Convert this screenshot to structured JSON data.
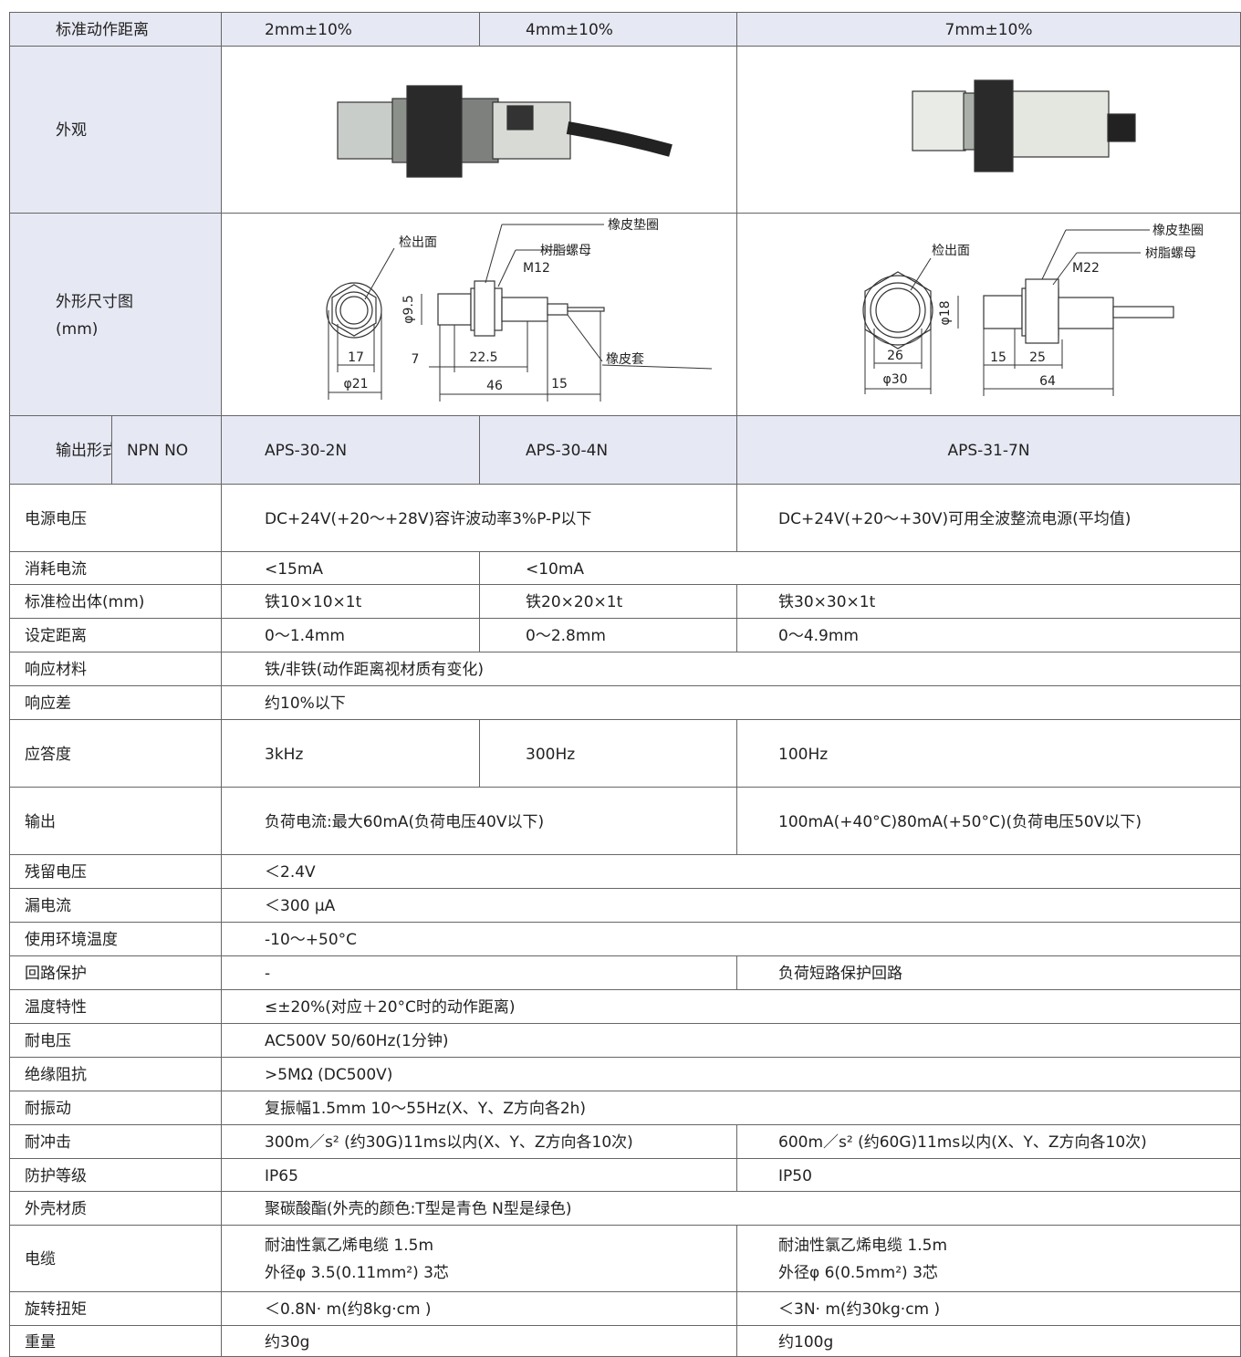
{
  "rows": [
    {
      "label": "标准动作距离",
      "cells": [
        "2mm±10%",
        "4mm±10%",
        "7mm±10%"
      ]
    },
    {
      "label": "外观",
      "cells": []
    },
    {
      "label": [
        "外形尺寸图",
        "(mm)"
      ],
      "cells": [],
      "drawings": [
        {
          "labels": [
            "检出面",
            "橡皮垫圈",
            "树脂螺母",
            "M12",
            "φ9.5",
            "17",
            "φ21",
            "7",
            "22.5",
            "46",
            "15",
            "橡皮套"
          ]
        },
        {
          "labels": [
            "检出面",
            "橡皮垫圈",
            "树脂螺母",
            "M22",
            "φ18",
            "26",
            "φ30",
            "15",
            "25",
            "64"
          ]
        }
      ]
    },
    {
      "label": "输出形式",
      "sublabel": "NPN NO",
      "cells": [
        "APS-30-2N",
        "APS-30-4N",
        "APS-31-7N"
      ]
    },
    {
      "label": "电源电压",
      "cells": [
        "DC+24V(+20～+28V)容许波动率3%P-P以下",
        "DC+24V(+20～+30V)可用全波整流电源(平均值)"
      ]
    },
    {
      "label": "消耗电流",
      "cells": [
        "<15mA",
        "<10mA"
      ]
    },
    {
      "label": "标准检出体(mm)",
      "cells": [
        "铁10×10×1t",
        "铁20×20×1t",
        "铁30×30×1t"
      ]
    },
    {
      "label": "设定距离",
      "cells": [
        "0～1.4mm",
        "0～2.8mm",
        "0～4.9mm"
      ]
    },
    {
      "label": "响应材料",
      "cells": [
        "铁/非铁(动作距离视材质有变化)"
      ]
    },
    {
      "label": "响应差",
      "cells": [
        "约10%以下"
      ]
    },
    {
      "label": "应答度",
      "cells": [
        "3kHz",
        "300Hz",
        "100Hz"
      ]
    },
    {
      "label": "输出",
      "cells": [
        "负荷电流:最大60mA(负荷电压40V以下)",
        "100mA(+40°C)80mA(+50°C)(负荷电压50V以下)"
      ]
    },
    {
      "label": "残留电压",
      "cells": [
        "＜2.4V"
      ]
    },
    {
      "label": "漏电流",
      "cells": [
        "＜300 μA"
      ]
    },
    {
      "label": "使用环境温度",
      "cells": [
        "-10～+50°C"
      ]
    },
    {
      "label": "回路保护",
      "cells": [
        "-",
        "负荷短路保护回路"
      ]
    },
    {
      "label": "温度特性",
      "cells": [
        "≤±20%(对应＋20°C时的动作距离)"
      ]
    },
    {
      "label": "耐电压",
      "cells": [
        "AC500V    50/60Hz(1分钟)"
      ]
    },
    {
      "label": "绝缘阻抗",
      "cells": [
        ">5MΩ  (DC500V)"
      ]
    },
    {
      "label": "耐振动",
      "cells": [
        "复振幅1.5mm  10～55Hz(X、Y、Z方向各2h)"
      ]
    },
    {
      "label": "耐冲击",
      "cells": [
        "300m／s² (约30G)11ms以内(X、Y、Z方向各10次)",
        "600m／s² (约60G)11ms以内(X、Y、Z方向各10次)"
      ]
    },
    {
      "label": "防护等级",
      "cells": [
        "IP65",
        "IP50"
      ]
    },
    {
      "label": "外壳材质",
      "cells": [
        "聚碳酸酯(外壳的颜色:T型是青色 N型是绿色)"
      ]
    },
    {
      "label": "电缆",
      "cells": [
        [
          "耐油性氯乙烯电缆  1.5m",
          "外径φ 3.5(0.11mm²) 3芯"
        ],
        [
          "耐油性氯乙烯电缆  1.5m",
          "外径φ 6(0.5mm²) 3芯"
        ]
      ]
    },
    {
      "label": "旋转扭矩",
      "cells": [
        "＜0.8N· m(约8kg·cm )",
        "＜3N· m(约30kg·cm )"
      ]
    },
    {
      "label": "重量",
      "cells": [
        "约30g",
        "约100g"
      ]
    }
  ]
}
